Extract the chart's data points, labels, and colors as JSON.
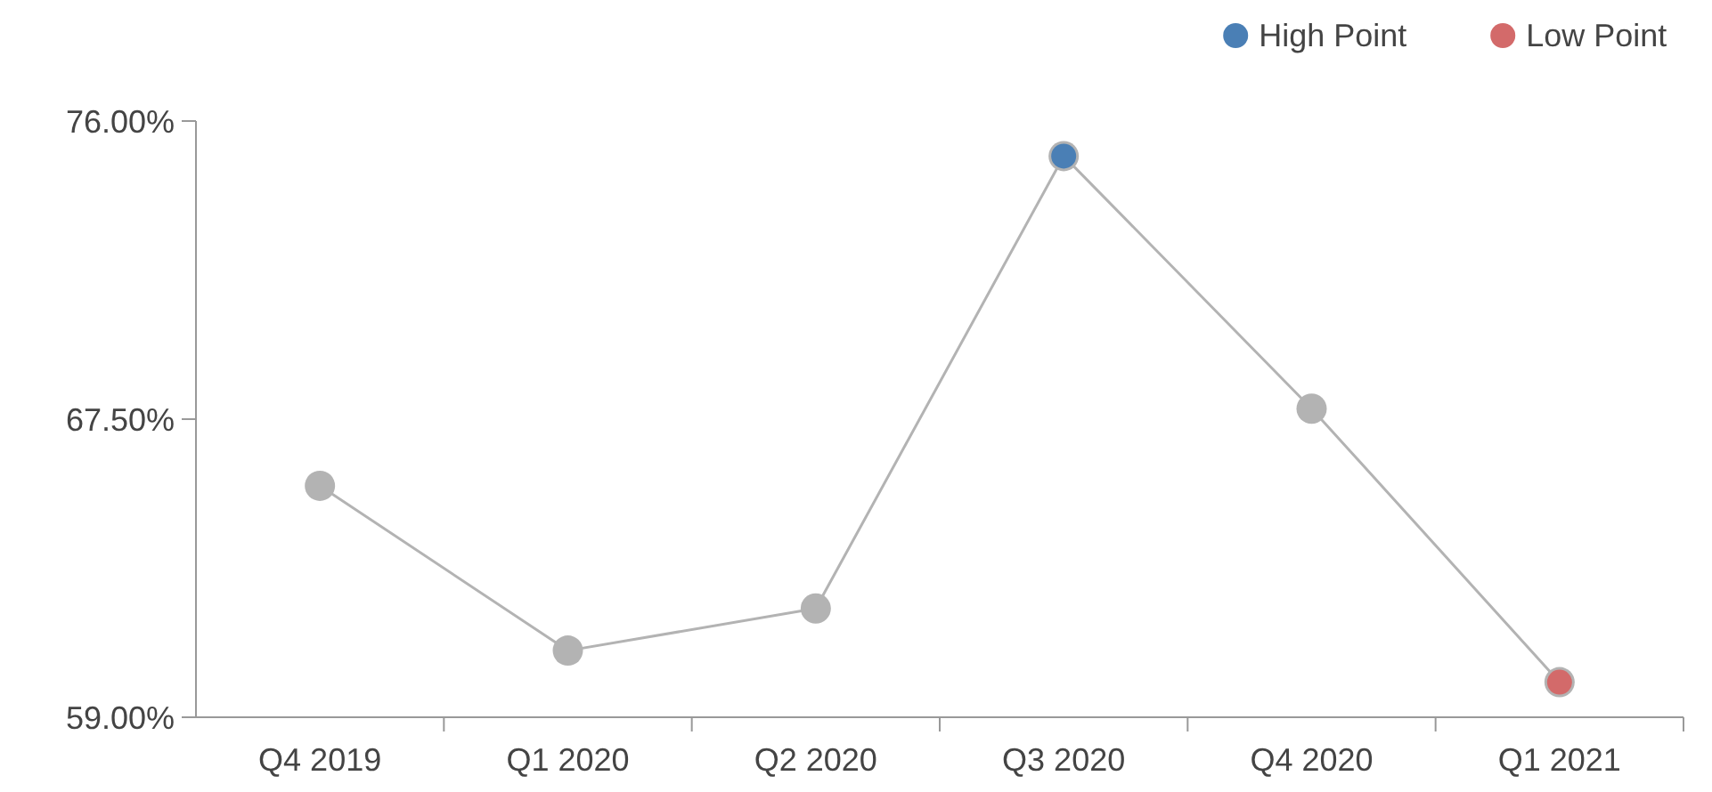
{
  "chart_data": {
    "type": "line",
    "categories": [
      "Q4 2019",
      "Q1 2020",
      "Q2 2020",
      "Q3 2020",
      "Q4 2020",
      "Q1 2021"
    ],
    "series": [
      {
        "color": "#b3b3b3",
        "values": [
          65.6,
          60.9,
          62.1,
          75.0,
          67.8,
          60.0
        ]
      },
      {
        "type": "scatter",
        "name": "High Point",
        "color": "#4a7fb5",
        "x": [
          "Q3 2020"
        ],
        "values": [
          75.0
        ]
      },
      {
        "type": "scatter",
        "name": "Low Point",
        "color": "#d36a6a",
        "x": [
          "Q1 2021"
        ],
        "values": [
          60.0
        ]
      }
    ],
    "ylim": [
      59,
      76
    ],
    "yticks": [
      {
        "value": 59,
        "label": "59.00%"
      },
      {
        "value": 67.5,
        "label": "67.50%"
      },
      {
        "value": 76,
        "label": "76.00%"
      }
    ],
    "grid": false,
    "legend": "top right",
    "marker": "circle",
    "line_style": "solid"
  }
}
